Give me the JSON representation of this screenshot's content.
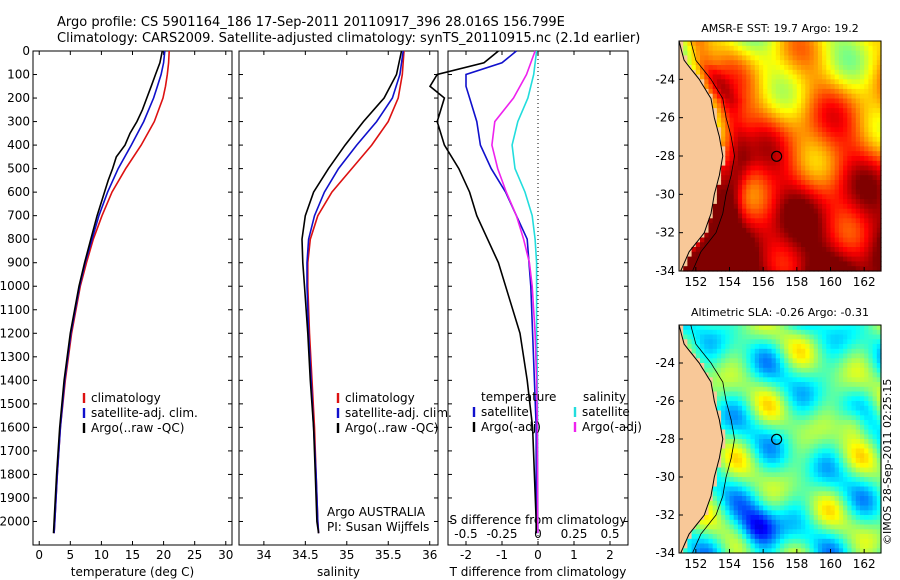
{
  "header": {
    "line1": "Argo profile: CS 5901164_186 17-Sep-2011 20110917_396 28.016S 156.799E",
    "line2": "Climatology: CARS2009. Satellite-adjusted climatology: synTS_20110915.nc (2.1d earlier)"
  },
  "colors": {
    "climatology": "#dd1111",
    "satellite": "#1010cc",
    "argo": "#000000",
    "sat_sal": "#22dddd",
    "argo_sal": "#ee22ee",
    "land": "#f8c898"
  },
  "chart_data": [
    {
      "type": "line",
      "id": "temperature",
      "xlabel": "temperature (deg C)",
      "ylabel": "",
      "xlim": [
        -1,
        31
      ],
      "ylim": [
        2100,
        0
      ],
      "xticks": [
        0,
        5,
        10,
        15,
        20,
        25,
        30
      ],
      "yticks": [
        0,
        100,
        200,
        300,
        400,
        500,
        600,
        700,
        800,
        900,
        1000,
        1100,
        1200,
        1300,
        1400,
        1500,
        1600,
        1700,
        1800,
        1900,
        2000
      ],
      "legend": [
        "climatology",
        "satellite-adj. clim.",
        "Argo(..raw -QC)"
      ],
      "legend_position": "bottom-right",
      "series": [
        {
          "name": "climatology",
          "depth": [
            0,
            50,
            100,
            150,
            200,
            300,
            400,
            500,
            600,
            700,
            800,
            900,
            1000,
            1200,
            1400,
            1600,
            1800,
            2000,
            2050
          ],
          "values": [
            20.9,
            20.8,
            20.6,
            20.3,
            19.9,
            18.5,
            16.4,
            13.9,
            11.7,
            10.1,
            8.7,
            7.6,
            6.6,
            5.2,
            4.2,
            3.4,
            2.9,
            2.5,
            2.4
          ]
        },
        {
          "name": "satellite-adj. clim.",
          "depth": [
            0,
            50,
            100,
            150,
            200,
            300,
            400,
            500,
            600,
            700,
            800,
            900,
            1000,
            1200,
            1400,
            1600,
            1800,
            2000,
            2050
          ],
          "values": [
            20.2,
            20.0,
            19.6,
            19.0,
            18.4,
            16.8,
            14.8,
            12.7,
            11.0,
            9.6,
            8.5,
            7.4,
            6.5,
            5.1,
            4.1,
            3.4,
            2.9,
            2.5,
            2.4
          ]
        },
        {
          "name": "Argo(..raw -QC)",
          "depth": [
            0,
            50,
            100,
            150,
            200,
            250,
            300,
            350,
            400,
            450,
            500,
            550,
            600,
            700,
            800,
            900,
            1000,
            1200,
            1400,
            1600,
            1800,
            2000,
            2050
          ],
          "values": [
            19.8,
            19.4,
            18.7,
            18.0,
            17.3,
            16.6,
            15.7,
            14.6,
            13.8,
            12.4,
            11.8,
            11.1,
            10.5,
            9.3,
            8.3,
            7.3,
            6.4,
            5.0,
            4.0,
            3.3,
            2.8,
            2.4,
            2.3
          ]
        }
      ]
    },
    {
      "type": "line",
      "id": "salinity",
      "xlabel": "salinity",
      "ylabel": "",
      "xlim": [
        33.7,
        36.1
      ],
      "ylim": [
        2100,
        0
      ],
      "xticks": [
        34,
        34.5,
        35,
        35.5,
        36
      ],
      "legend": [
        "climatology",
        "satellite-adj. clim.",
        "Argo(..raw -QC)"
      ],
      "legend_position": "bottom-right",
      "annotation": [
        "Argo AUSTRALIA",
        "PI: Susan Wijffels"
      ],
      "series": [
        {
          "name": "climatology",
          "depth": [
            0,
            100,
            200,
            300,
            400,
            500,
            600,
            700,
            800,
            900,
            1000,
            1200,
            1400,
            1600,
            1800,
            2000,
            2050
          ],
          "values": [
            35.69,
            35.67,
            35.62,
            35.5,
            35.3,
            35.06,
            34.82,
            34.65,
            34.56,
            34.53,
            34.53,
            34.55,
            34.58,
            34.61,
            34.63,
            34.65,
            34.66
          ]
        },
        {
          "name": "satellite-adj. clim.",
          "depth": [
            0,
            100,
            200,
            300,
            400,
            500,
            600,
            700,
            800,
            900,
            1000,
            1200,
            1400,
            1600,
            1800,
            2000,
            2050
          ],
          "values": [
            35.68,
            35.64,
            35.55,
            35.36,
            35.12,
            34.9,
            34.73,
            34.61,
            34.54,
            34.52,
            34.52,
            34.54,
            34.57,
            34.6,
            34.63,
            34.65,
            34.66
          ]
        },
        {
          "name": "Argo(..raw -QC)",
          "depth": [
            0,
            100,
            200,
            300,
            400,
            500,
            600,
            700,
            800,
            900,
            1000,
            1200,
            1400,
            1600,
            1800,
            2000,
            2050
          ],
          "values": [
            35.66,
            35.6,
            35.45,
            35.2,
            34.98,
            34.78,
            34.6,
            34.5,
            34.46,
            34.47,
            34.49,
            34.53,
            34.56,
            34.6,
            34.62,
            34.64,
            34.66
          ]
        }
      ]
    },
    {
      "type": "line",
      "id": "difference",
      "xlabel": "T difference from climatology",
      "xlabel_top": "S difference from climatology",
      "xlim": [
        -2.5,
        2.5
      ],
      "ylim": [
        2100,
        0
      ],
      "xticks": [
        -2,
        -1,
        0,
        1,
        2
      ],
      "xticks_S_labels": [
        "-0.5",
        "-0.25",
        "0",
        "0.25",
        "0.5"
      ],
      "xticks_S_values": [
        -2,
        -1,
        0,
        1,
        2
      ],
      "legend_T_title": "temperature",
      "legend_S_title": "salinity",
      "legend": [
        "satellite",
        "Argo(-adj)",
        "satellite",
        "Argo(-adj)"
      ],
      "legend_position": "bottom-right",
      "series": [
        {
          "name": "T satellite",
          "depth": [
            0,
            50,
            100,
            150,
            200,
            300,
            400,
            500,
            600,
            700,
            800,
            900,
            1000,
            1200,
            1400,
            1600,
            1800,
            2000,
            2050
          ],
          "values": [
            -0.6,
            -1.0,
            -2.0,
            -2.0,
            -1.9,
            -1.7,
            -1.6,
            -1.3,
            -0.9,
            -0.6,
            -0.3,
            -0.25,
            -0.2,
            -0.15,
            -0.1,
            -0.05,
            -0.05,
            -0.05,
            -0.05
          ]
        },
        {
          "name": "T Argo(-adj)",
          "depth": [
            0,
            50,
            100,
            150,
            200,
            300,
            400,
            500,
            600,
            700,
            800,
            900,
            1000,
            1200,
            1400,
            1600,
            1800,
            2000,
            2050
          ],
          "values": [
            -1.1,
            -1.5,
            -2.8,
            -3.0,
            -2.6,
            -2.8,
            -2.6,
            -2.2,
            -1.9,
            -1.7,
            -1.4,
            -1.1,
            -0.9,
            -0.5,
            -0.3,
            -0.15,
            -0.1,
            -0.05,
            -0.05
          ]
        },
        {
          "name": "S satellite",
          "depth": [
            0,
            100,
            200,
            300,
            400,
            500,
            600,
            700,
            800,
            900,
            1000,
            1200,
            1400,
            1600,
            1800,
            2000,
            2050
          ],
          "values": [
            -0.01,
            -0.03,
            -0.07,
            -0.14,
            -0.18,
            -0.16,
            -0.09,
            -0.04,
            -0.02,
            -0.01,
            -0.01,
            -0.01,
            -0.005,
            -0.003,
            -0.002,
            -0.001,
            0
          ]
        },
        {
          "name": "S Argo(-adj)",
          "depth": [
            0,
            100,
            200,
            300,
            400,
            500,
            600,
            700,
            800,
            900,
            1000,
            1200,
            1400,
            1600,
            1800,
            2000,
            2050
          ],
          "values": [
            -0.02,
            -0.08,
            -0.17,
            -0.3,
            -0.32,
            -0.28,
            -0.22,
            -0.15,
            -0.1,
            -0.06,
            -0.04,
            -0.02,
            -0.01,
            -0.005,
            -0.003,
            -0.002,
            0
          ]
        }
      ]
    },
    {
      "type": "heatmap",
      "id": "sst_map",
      "title": "AMSR-E SST: 19.7  Argo: 19.2",
      "xlim": [
        151,
        163
      ],
      "ylim": [
        -34,
        -22
      ],
      "xticks": [
        152,
        154,
        156,
        158,
        160,
        162
      ],
      "yticks": [
        -24,
        -26,
        -28,
        -30,
        -32,
        -34
      ],
      "marker": {
        "lon": 156.799,
        "lat": -28.016
      }
    },
    {
      "type": "heatmap",
      "id": "sla_map",
      "title": "Altimetric SLA: -0.26  Argo: -0.31",
      "xlim": [
        151,
        163
      ],
      "ylim": [
        -34,
        -22
      ],
      "xticks": [
        152,
        154,
        156,
        158,
        160,
        162
      ],
      "yticks": [
        -24,
        -26,
        -28,
        -30,
        -32,
        -34
      ],
      "marker": {
        "lon": 156.799,
        "lat": -28.016
      }
    }
  ],
  "footer": {
    "credit": "©IMOS 28-Sep-2011 02:25:15"
  }
}
